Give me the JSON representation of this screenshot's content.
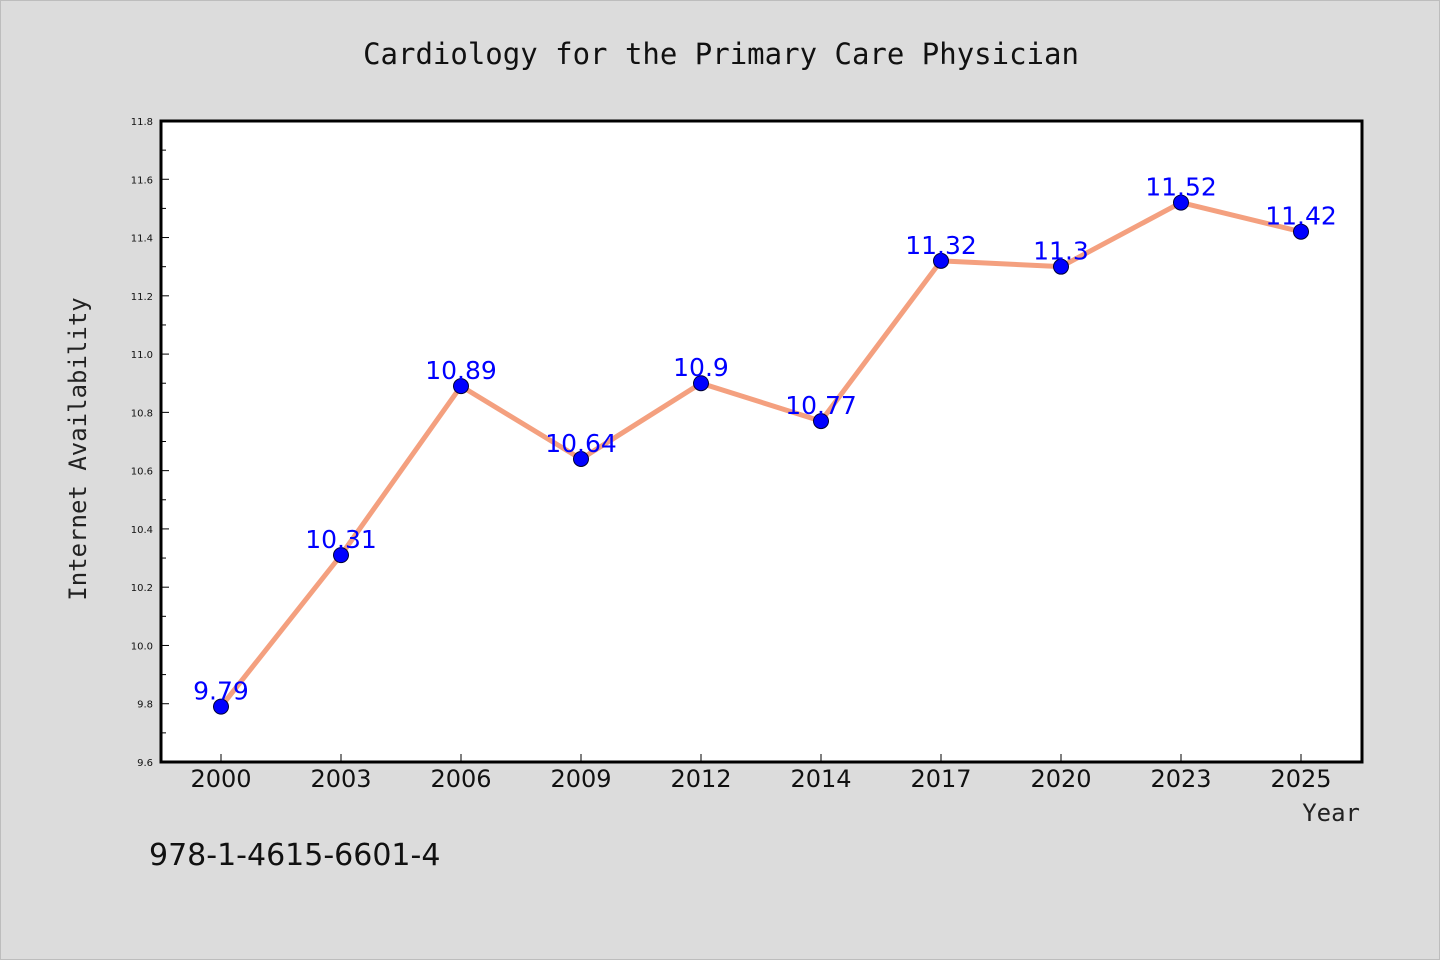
{
  "colors": {
    "background": "#dcdcdc",
    "plot_background": "#ffffff",
    "line": "#f4a07f",
    "marker": "#0000ff",
    "data_label": "#0000ff",
    "text": "#111111"
  },
  "footnote": "978-1-4615-6601-4",
  "chart_data": {
    "type": "line",
    "title": "Cardiology for the Primary Care Physician",
    "xlabel": "Year",
    "ylabel": "Internet Availability",
    "categories": [
      "2000",
      "2003",
      "2006",
      "2009",
      "2012",
      "2014",
      "2017",
      "2020",
      "2023",
      "2025"
    ],
    "series": [
      {
        "values": [
          9.79,
          10.31,
          10.89,
          10.64,
          10.9,
          10.77,
          11.32,
          11.3,
          11.52,
          11.42
        ],
        "labels": [
          "9.79",
          "10.31",
          "10.89",
          "10.64",
          "10.9",
          "10.77",
          "11.32",
          "11.3",
          "11.52",
          "11.42"
        ]
      }
    ],
    "ylim": [
      9.6,
      11.8
    ],
    "yticks": [
      "9.6",
      "9.8",
      "10.0",
      "10.2",
      "10.4",
      "10.6",
      "10.8",
      "11.0",
      "11.2",
      "11.4",
      "11.6",
      "11.8"
    ],
    "grid": false,
    "legend": "none"
  }
}
